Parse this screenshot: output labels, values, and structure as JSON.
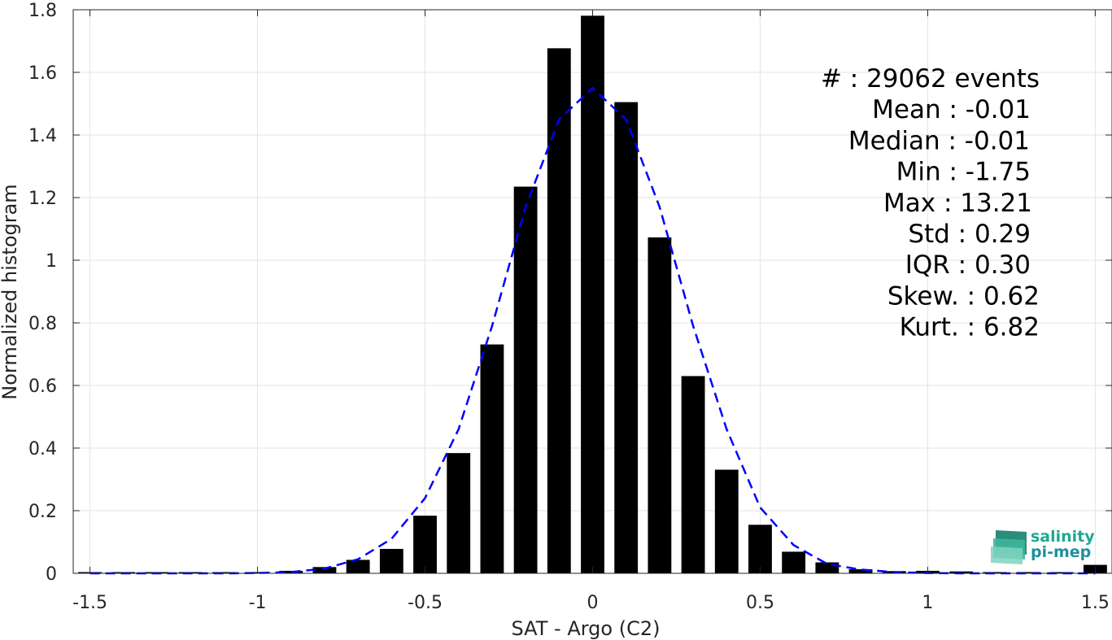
{
  "chart_data": {
    "type": "bar",
    "xlabel": "SAT - Argo (C2)",
    "ylabel": "Normalized histogram",
    "xlim": [
      -1.55,
      1.55
    ],
    "ylim": [
      0,
      1.8
    ],
    "grid": true,
    "x_ticks": [
      -1.5,
      -1,
      -0.5,
      0,
      0.5,
      1,
      1.5
    ],
    "x_tick_labels": [
      "-1.5",
      "-1",
      "-0.5",
      "0",
      "0.5",
      "1",
      "1.5"
    ],
    "y_ticks": [
      0,
      0.2,
      0.4,
      0.6,
      0.8,
      1,
      1.2,
      1.4,
      1.6,
      1.8
    ],
    "y_tick_labels": [
      "0",
      "0.2",
      "0.4",
      "0.6",
      "0.8",
      "1",
      "1.2",
      "1.4",
      "1.6",
      "1.8"
    ],
    "bar_color": "#000000",
    "bar_width": 0.07,
    "x": [
      -1.5,
      -1.4,
      -1.3,
      -1.2,
      -1.1,
      -1.0,
      -0.9,
      -0.8,
      -0.7,
      -0.6,
      -0.5,
      -0.4,
      -0.3,
      -0.2,
      -0.1,
      0.0,
      0.1,
      0.2,
      0.3,
      0.4,
      0.5,
      0.6,
      0.7,
      0.8,
      0.9,
      1.0,
      1.1,
      1.2,
      1.3,
      1.4,
      1.5
    ],
    "values": [
      0.001,
      0.001,
      0.001,
      0.001,
      0.002,
      0.003,
      0.008,
      0.02,
      0.043,
      0.078,
      0.184,
      0.384,
      0.731,
      1.235,
      1.677,
      1.781,
      1.505,
      1.073,
      0.63,
      0.331,
      0.155,
      0.069,
      0.035,
      0.013,
      0.007,
      0.008,
      0.006,
      0.004,
      0.004,
      0.003,
      0.027
    ],
    "fit": {
      "style": "dashed",
      "color": "#0000ff",
      "x": [
        -1.5,
        -1.4,
        -1.3,
        -1.2,
        -1.1,
        -1.0,
        -0.9,
        -0.8,
        -0.7,
        -0.6,
        -0.5,
        -0.4,
        -0.3,
        -0.2,
        -0.1,
        0.0,
        0.1,
        0.2,
        0.3,
        0.4,
        0.5,
        0.6,
        0.7,
        0.8,
        0.9,
        1.0,
        1.1,
        1.2,
        1.3,
        1.4,
        1.5
      ],
      "y": [
        0.0,
        0.0,
        0.0,
        0.0,
        0.0,
        0.001,
        0.004,
        0.015,
        0.045,
        0.11,
        0.24,
        0.46,
        0.79,
        1.17,
        1.45,
        1.55,
        1.45,
        1.17,
        0.79,
        0.46,
        0.21,
        0.09,
        0.03,
        0.012,
        0.004,
        0.001,
        0.0,
        0.0,
        0.0,
        0.0,
        0.0
      ]
    },
    "stats": [
      {
        "label": "#  ",
        "value": ": 29062 events"
      },
      {
        "label": "Mean ",
        "value": ": -0.01"
      },
      {
        "label": "Median ",
        "value": ": -0.01"
      },
      {
        "label": "Min ",
        "value": ": -1.75"
      },
      {
        "label": "Max ",
        "value": ": 13.21"
      },
      {
        "label": "Std ",
        "value": ": 0.29"
      },
      {
        "label": "IQR ",
        "value": ": 0.30"
      },
      {
        "label": "Skew. ",
        "value": ": 0.62"
      },
      {
        "label": "Kurt. ",
        "value": ": 6.82"
      }
    ],
    "stats_lines": [
      "#  : 29062 events",
      "Mean : -0.01",
      "Median : -0.01",
      "Min : -1.75",
      "Max : 13.21",
      "Std : 0.29",
      "IQR : 0.30",
      "Skew. : 0.62",
      "Kurt. : 6.82"
    ]
  },
  "logo": {
    "line1": "salinity",
    "line2": "pi-mep",
    "color": "#1fa98e"
  }
}
